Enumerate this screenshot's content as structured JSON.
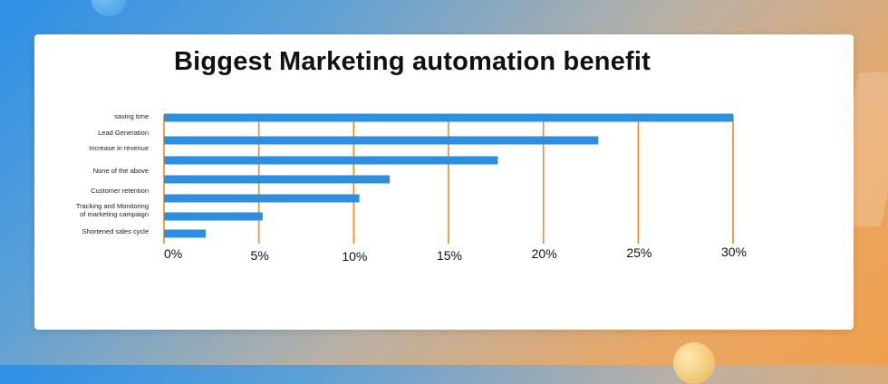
{
  "chart_data": {
    "type": "bar",
    "orientation": "horizontal",
    "title": "Biggest Marketing automation benefit",
    "categories": [
      "saving time",
      "Lead Generation",
      "Increase in revenue",
      "None of the above",
      "Customer retention",
      "Tracking and Monitoring of marketing campaign",
      "Shortened sales cycle"
    ],
    "category_lines": [
      [
        "saving time"
      ],
      [
        "Lead Generation"
      ],
      [
        "Increase in revenue"
      ],
      [
        "None of the above"
      ],
      [
        "Customer retention"
      ],
      [
        "Tracking and Monitoring",
        "of marketing campaign"
      ],
      [
        "Shortened sales cycle"
      ]
    ],
    "values": [
      30,
      22.9,
      17.6,
      11.9,
      10.3,
      5.2,
      2.2
    ],
    "ticks": [
      0,
      5,
      10,
      15,
      20,
      25,
      30
    ],
    "tick_labels": [
      "0%",
      "5%",
      "10%",
      "15%",
      "20%",
      "25%",
      "30%"
    ],
    "xlim": [
      0,
      30
    ],
    "grid": true,
    "colors": {
      "bar": "#2f8fdf",
      "grid": "#f08a24"
    }
  }
}
